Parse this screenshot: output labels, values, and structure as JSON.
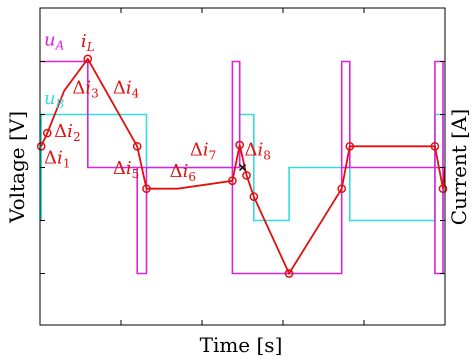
{
  "chart_data": {
    "type": "line",
    "title": "",
    "xlabel": "Time [s]",
    "ylabel_left": "Voltage [V]",
    "ylabel_right": "Current [A]",
    "grid": false,
    "xlim": [
      0,
      10
    ],
    "ylim": [
      -5,
      5
    ],
    "series": [
      {
        "name": "u_A",
        "color": "#dd22dd",
        "x": [
          -0.2,
          1.18,
          1.18,
          2.4,
          2.4,
          2.63,
          2.63,
          2.4,
          2.4,
          4.75,
          4.75,
          4.93,
          4.93,
          4.75,
          4.75,
          7.45,
          7.45,
          7.65,
          7.65,
          7.45,
          7.45,
          9.75,
          9.75,
          9.95,
          9.95,
          9.75,
          9.75,
          10.0
        ],
        "values": [
          4,
          4,
          0,
          0,
          -4,
          -4,
          0,
          0,
          0,
          0,
          4,
          4,
          0,
          0,
          -4,
          -4,
          0,
          0,
          4,
          4,
          0,
          0,
          -4,
          -4,
          4,
          4,
          0,
          0
        ]
      },
      {
        "name": "u_B",
        "color": "#33dddd",
        "x": [
          -0.2,
          0.03,
          0.03,
          2.63,
          2.63,
          4.93,
          4.93,
          5.28,
          5.28,
          6.15,
          6.15,
          7.65,
          7.65,
          9.75,
          9.75,
          9.95,
          9.95,
          10.0
        ],
        "values": [
          -2,
          -2,
          2,
          2,
          0,
          0,
          2,
          2,
          -2,
          -2,
          0,
          0,
          -2,
          -2,
          2,
          2,
          -2,
          -2
        ]
      },
      {
        "name": "i_L",
        "color": "#e01010",
        "x": [
          0.03,
          0.18,
          0.6,
          1.18,
          2.4,
          2.63,
          3.4,
          4.75,
          4.93,
          5.1,
          5.28,
          6.15,
          7.45,
          7.65,
          9.75,
          9.95,
          10.0
        ],
        "values": [
          0.8,
          1.3,
          2.9,
          4.1,
          0.8,
          -0.8,
          -0.8,
          -0.5,
          0.85,
          -0.3,
          -1.1,
          -4.0,
          -0.8,
          0.8,
          0.8,
          -0.8,
          0.0
        ],
        "marked_x": [
          0.03,
          0.18,
          1.18,
          2.4,
          2.63,
          4.75,
          4.93,
          5.1,
          5.28,
          6.15,
          7.45,
          7.65,
          9.75,
          9.95
        ]
      }
    ],
    "cross_marker": {
      "x": 5.0,
      "y": 0.0
    },
    "legend": [
      {
        "text": "u",
        "sub": "A",
        "color": "#dd22dd"
      },
      {
        "text": "i",
        "sub": "L",
        "color": "#e01010"
      },
      {
        "text": "u",
        "sub": "B",
        "color": "#33dddd"
      }
    ],
    "annotations": [
      {
        "text": "Δi",
        "sub": "1",
        "x": 0.1,
        "y": 0.15
      },
      {
        "text": "Δi",
        "sub": "2",
        "x": 0.35,
        "y": 1.15
      },
      {
        "text": "Δi",
        "sub": "3",
        "x": 0.8,
        "y": 2.8
      },
      {
        "text": "Δi",
        "sub": "4",
        "x": 1.8,
        "y": 2.8
      },
      {
        "text": "Δi",
        "sub": "5",
        "x": 1.8,
        "y": -0.25
      },
      {
        "text": "Δi",
        "sub": "6",
        "x": 3.2,
        "y": -0.35
      },
      {
        "text": "Δi",
        "sub": "7",
        "x": 3.7,
        "y": 0.45
      },
      {
        "text": "Δi",
        "sub": "8",
        "x": 5.05,
        "y": 0.45
      }
    ]
  }
}
